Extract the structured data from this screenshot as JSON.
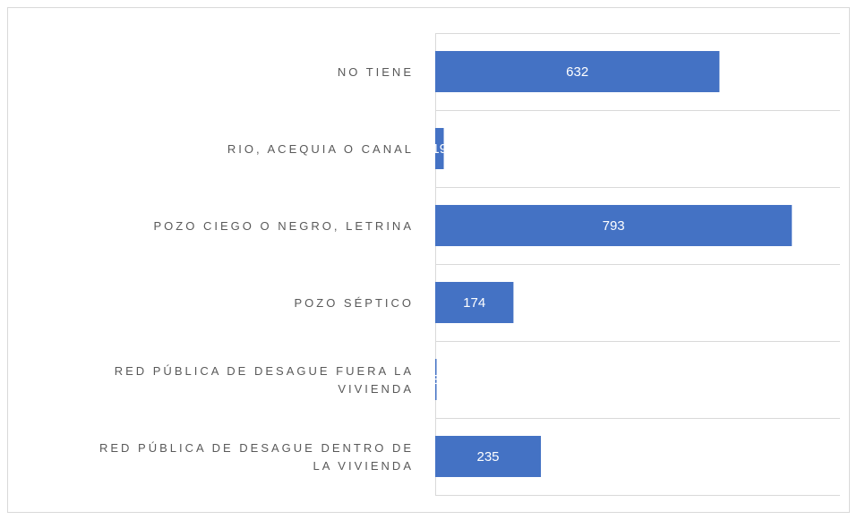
{
  "chart_data": {
    "type": "barh",
    "categories": [
      "NO TIENE",
      "RIO, ACEQUIA O CANAL",
      "POZO CIEGO O NEGRO, LETRINA",
      "POZO SÉPTICO",
      "RED PÚBLICA DE DESAGUE FUERA LA VIVIENDA",
      "RED PÚBLICA DE DESAGUE DENTRO DE LA VIVIENDA"
    ],
    "values": [
      632,
      19,
      793,
      174,
      3,
      235
    ],
    "color": "#4472c4",
    "xlim": [
      0,
      900
    ],
    "grid": true
  }
}
